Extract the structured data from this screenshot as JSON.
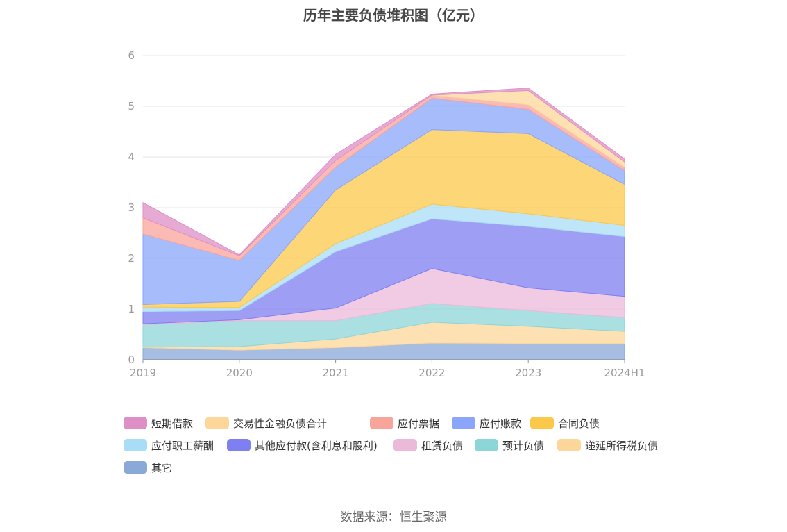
{
  "chart_data": {
    "type": "area",
    "stacked": true,
    "title": "历年主要负债堆积图（亿元）",
    "x": [
      "2019",
      "2020",
      "2021",
      "2022",
      "2023",
      "2024H1"
    ],
    "ylim": [
      0,
      6
    ],
    "yticks": [
      "0",
      "1",
      "2",
      "3",
      "4",
      "5",
      "6"
    ],
    "grid": true,
    "legend_position": "bottom",
    "series": [
      {
        "name": "其它",
        "color": "#8aa8d8",
        "values": [
          0.24,
          0.19,
          0.24,
          0.33,
          0.32,
          0.32
        ]
      },
      {
        "name": "递延所得税负债",
        "color": "#fdd79a",
        "values": [
          0.01,
          0.07,
          0.17,
          0.41,
          0.34,
          0.24
        ]
      },
      {
        "name": "预计负债",
        "color": "#8dd6d8",
        "values": [
          0.44,
          0.51,
          0.36,
          0.37,
          0.31,
          0.27
        ]
      },
      {
        "name": "租赁负债",
        "color": "#ebbad9",
        "values": [
          0.02,
          0.02,
          0.25,
          0.69,
          0.45,
          0.42
        ]
      },
      {
        "name": "其他应付款(含利息和股利)",
        "color": "#7e7ff0",
        "values": [
          0.24,
          0.18,
          1.11,
          0.98,
          1.21,
          1.18
        ]
      },
      {
        "name": "应付职工薪酬",
        "color": "#a9dcf6",
        "values": [
          0.09,
          0.06,
          0.16,
          0.29,
          0.25,
          0.22
        ]
      },
      {
        "name": "合同负债",
        "color": "#fbc84a",
        "values": [
          0.05,
          0.12,
          1.06,
          1.47,
          1.58,
          0.81
        ]
      },
      {
        "name": "应付账款",
        "color": "#8aa5fa",
        "values": [
          1.39,
          0.81,
          0.45,
          0.62,
          0.48,
          0.27
        ]
      },
      {
        "name": "应付票据",
        "color": "#f9a49b",
        "values": [
          0.32,
          0.09,
          0.13,
          0.06,
          0.09,
          0.07
        ]
      },
      {
        "name": "交易性金融负债合计",
        "color": "#fdd79a",
        "values": [
          0,
          0,
          0,
          0,
          0.28,
          0.1
        ]
      },
      {
        "name": "短期借款",
        "color": "#de8fc6",
        "values": [
          0.3,
          0.02,
          0.12,
          0.02,
          0.05,
          0.06
        ]
      }
    ],
    "legend_order": [
      "短期借款",
      "交易性金融负债合计",
      "应付票据",
      "应付账款",
      "合同负债",
      "应付职工薪酬",
      "其他应付款(含利息和股利)",
      "租赁负债",
      "预计负债",
      "递延所得税负债",
      "其它"
    ]
  },
  "source": "数据来源：恒生聚源"
}
